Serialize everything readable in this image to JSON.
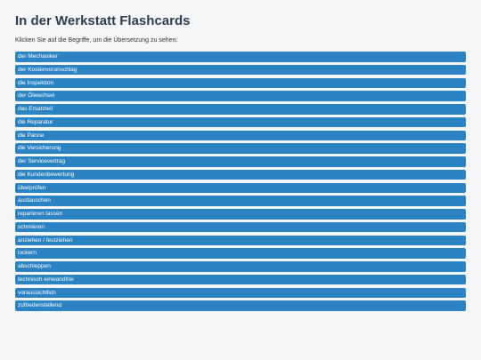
{
  "page": {
    "title": "In der Werkstatt Flashcards",
    "instruction": "Klicken Sie auf die Begriffe, um die Übersetzung zu sehen:"
  },
  "colors": {
    "card_background": "#2c83c4",
    "card_text": "#ffffff",
    "title": "#2c3e50",
    "page_background": "#f5f6f8"
  },
  "cards": [
    {
      "term": "der Mechaniker"
    },
    {
      "term": "der Kostenvoranschlag"
    },
    {
      "term": "die Inspektion"
    },
    {
      "term": "der Ölwechsel"
    },
    {
      "term": "das Ersatzteil"
    },
    {
      "term": "die Reparatur"
    },
    {
      "term": "die Panne"
    },
    {
      "term": "die Versicherung"
    },
    {
      "term": "der Servicevertrag"
    },
    {
      "term": "die Kundenbewertung"
    },
    {
      "term": "überprüfen"
    },
    {
      "term": "austauschen"
    },
    {
      "term": "reparieren lassen"
    },
    {
      "term": "schmieren"
    },
    {
      "term": "anziehen / festziehen"
    },
    {
      "term": "lockern"
    },
    {
      "term": "abschleppen"
    },
    {
      "term": "technisch einwandfrei"
    },
    {
      "term": "voraussichtlich"
    },
    {
      "term": "zufriedenstellend"
    }
  ]
}
